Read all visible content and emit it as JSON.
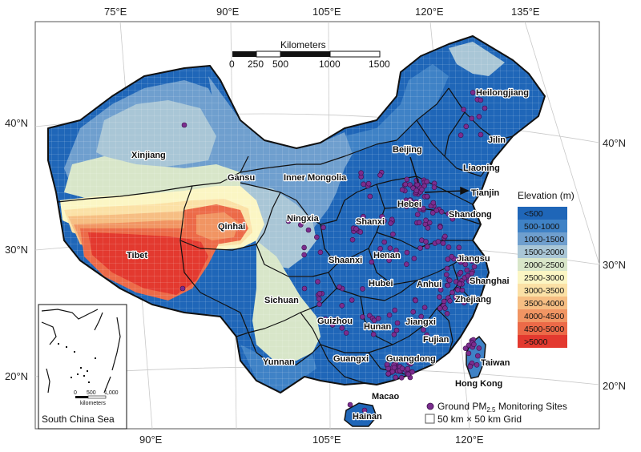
{
  "colors": {
    "elevation": [
      "#1f66b8",
      "#3f82c6",
      "#6f9fce",
      "#a9c6d6",
      "#d8e6c9",
      "#fbf6c4",
      "#fbe1a6",
      "#f6be83",
      "#f19563",
      "#ec6a48",
      "#e3392f"
    ],
    "site": "#7b2d8e",
    "site_stroke": "#3a0f4a",
    "boundary": "#111111",
    "grid": "#ffffff"
  },
  "ticks": {
    "top": [
      "75°E",
      "90°E",
      "105°E",
      "120°E",
      "135°E"
    ],
    "bottom": [
      "90°E",
      "105°E",
      "120°E"
    ],
    "left": [
      "40°N",
      "30°N",
      "20°N"
    ],
    "right": [
      "40°N",
      "30°N",
      "20°N"
    ]
  },
  "scalebar": {
    "title": "Kilometers",
    "labels": [
      "0",
      "250",
      "500",
      "1000",
      "1500"
    ]
  },
  "legend": {
    "title": "Elevation (m)",
    "classes": [
      "<500",
      "500-1000",
      "1000-1500",
      "1500-2000",
      "2000-2500",
      "2500-3000",
      "3000-3500",
      "3500-4000",
      "4000-4500",
      "4500-5000",
      ">5000"
    ],
    "sites_prefix": "Ground PM",
    "sites_sub": "2.5",
    "sites_suffix": " Monitoring Sites",
    "grid": "50 km × 50 km Grid"
  },
  "provinces": [
    "Heilongjiang",
    "Jilin",
    "Liaoning",
    "Beijing",
    "Tianjin",
    "Hebei",
    "Shandong",
    "Xinjiang",
    "Gansu",
    "Inner Mongolia",
    "Ningxia",
    "Shanxi",
    "Qinhai",
    "Tibet",
    "Shaanxi",
    "Henan",
    "Jiangsu",
    "Sichuan",
    "Hubei",
    "Anhui",
    "Shanghai",
    "Zhejiang",
    "Guizhou",
    "Hunan",
    "Jiangxi",
    "Fujian",
    "Yunnan",
    "Guangxi",
    "Guangdong",
    "Taiwan",
    "Hong Kong",
    "Macao",
    "Hainan"
  ],
  "inset": {
    "title": "South China Sea",
    "scale_labels": [
      "0",
      "500",
      "1,000"
    ],
    "scale_unit": "kilometers"
  }
}
